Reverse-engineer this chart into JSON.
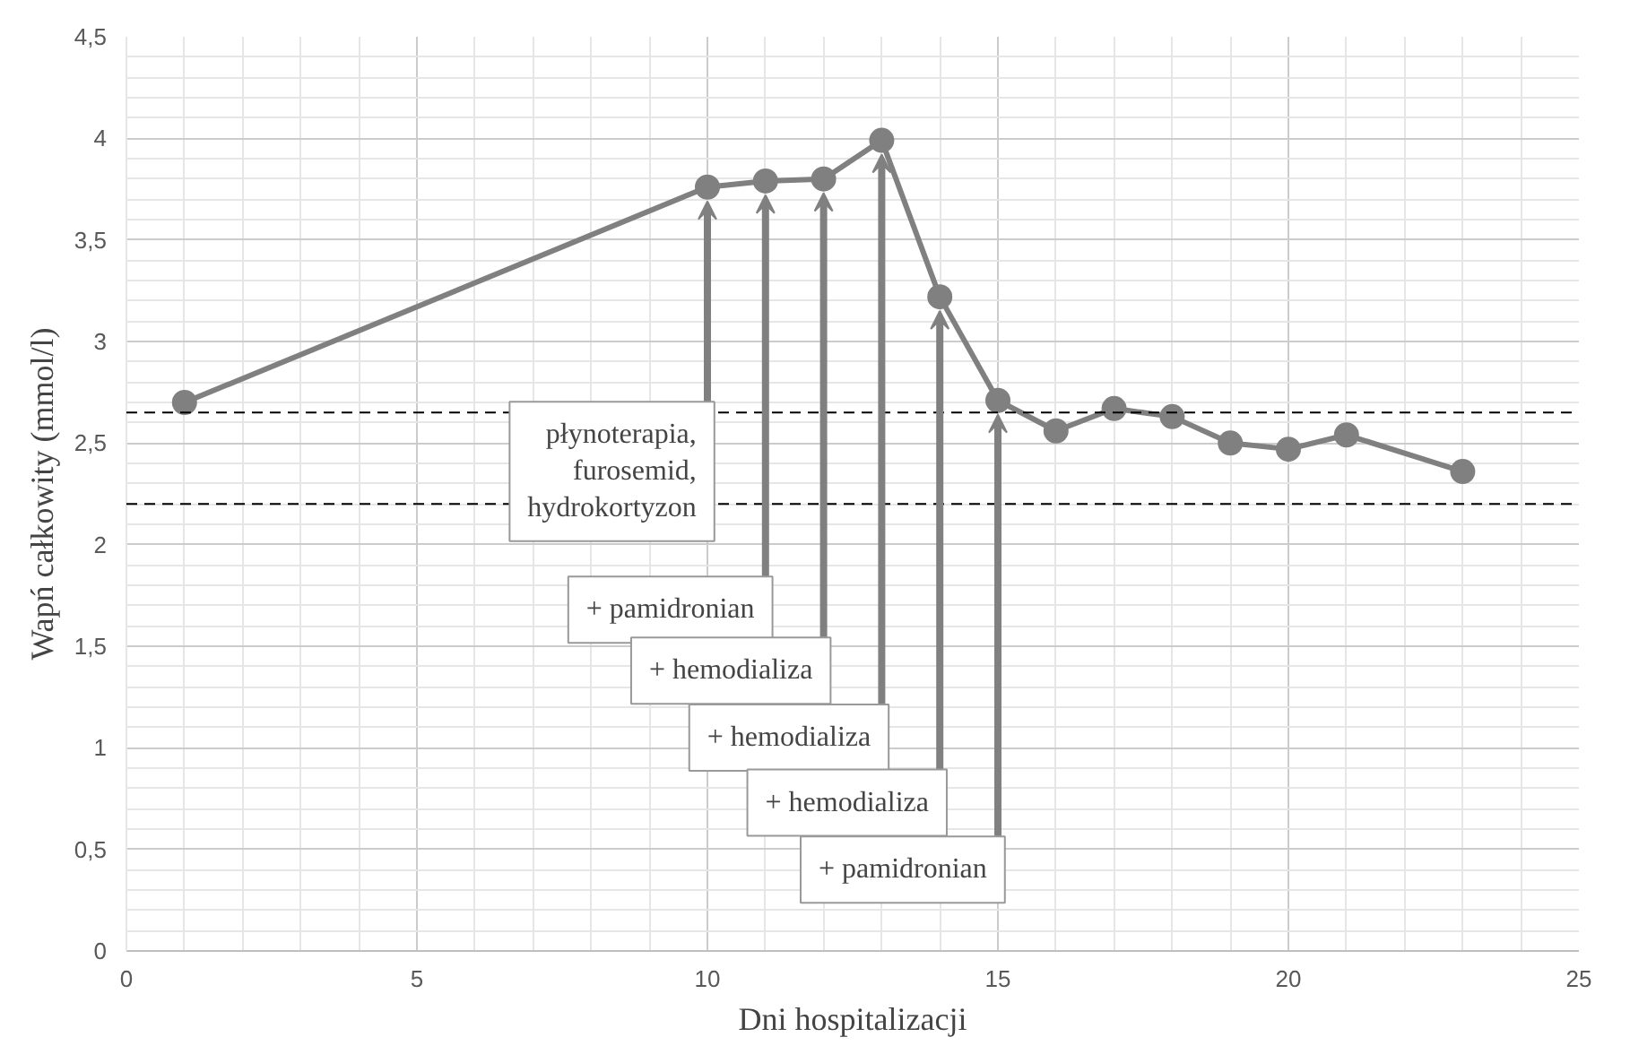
{
  "chart_data": {
    "type": "line",
    "xlabel": "Dni hospitalizacji",
    "ylabel": "Wapń całkowity (mmol/l)",
    "x": [
      1,
      10,
      11,
      12,
      13,
      14,
      15,
      16,
      17,
      18,
      19,
      20,
      21,
      23
    ],
    "series": [
      {
        "color": "#808080",
        "values": [
          2.7,
          3.76,
          3.79,
          3.8,
          3.99,
          3.22,
          2.71,
          2.56,
          2.67,
          2.63,
          2.5,
          2.47,
          2.54,
          2.36
        ]
      }
    ],
    "marker": "circle",
    "line_style": "solid",
    "grid": true,
    "xlim": [
      0,
      25
    ],
    "xticks": [
      0,
      5,
      10,
      15,
      20,
      25
    ],
    "ylim": [
      0,
      4.5
    ],
    "yticks": [
      0,
      {
        "value": 0.5,
        "label": "0,5"
      },
      1,
      {
        "value": 1.5,
        "label": "1,5"
      },
      2,
      {
        "value": 2.5,
        "label": "2,5"
      },
      3,
      {
        "value": 3.5,
        "label": "3,5"
      },
      4,
      {
        "value": 4.5,
        "label": "4,5"
      }
    ],
    "ref_lines": [
      {
        "axis": "y",
        "value": 2.65,
        "line_style": "dashed",
        "color": "#000000"
      },
      {
        "axis": "y",
        "value": 2.2,
        "line_style": "dashed",
        "color": "#000000"
      }
    ],
    "annotations": [
      {
        "text": "płynoterapia,\nfurosemid,\nhydrokortyzon",
        "x": 10,
        "y": 3.76
      },
      {
        "text": "+ pamidronian",
        "x": 11,
        "y": 3.79
      },
      {
        "text": "+ hemodializa",
        "x": 12,
        "y": 3.8
      },
      {
        "text": "+ hemodializa",
        "x": 13,
        "y": 3.99
      },
      {
        "text": "+ hemodializa",
        "x": 14,
        "y": 3.22
      },
      {
        "text": "+ pamidronian",
        "x": 15,
        "y": 2.71
      }
    ]
  }
}
